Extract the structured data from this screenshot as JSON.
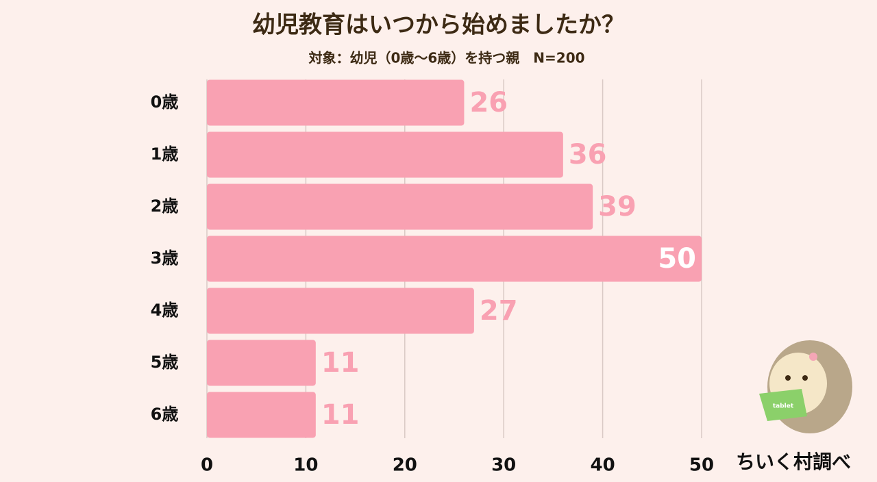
{
  "chart_data": {
    "type": "barh",
    "title": "幼児教育はいつから始めましたか？",
    "subtitle": "対象：幼児（0歳〜6歳）を持つ親　N=200",
    "categories": [
      "0歳",
      "1歳",
      "2歳",
      "3歳",
      "4歳",
      "5歳",
      "6歳"
    ],
    "values": [
      26,
      36,
      39,
      50,
      27,
      11,
      11
    ],
    "color": "#f9a1b2",
    "xlim": [
      0,
      50
    ],
    "xticks": [
      0,
      10,
      20,
      30,
      40,
      50
    ],
    "grid": true,
    "source": "ちいく村調べ",
    "illustration_label": "tablet"
  }
}
